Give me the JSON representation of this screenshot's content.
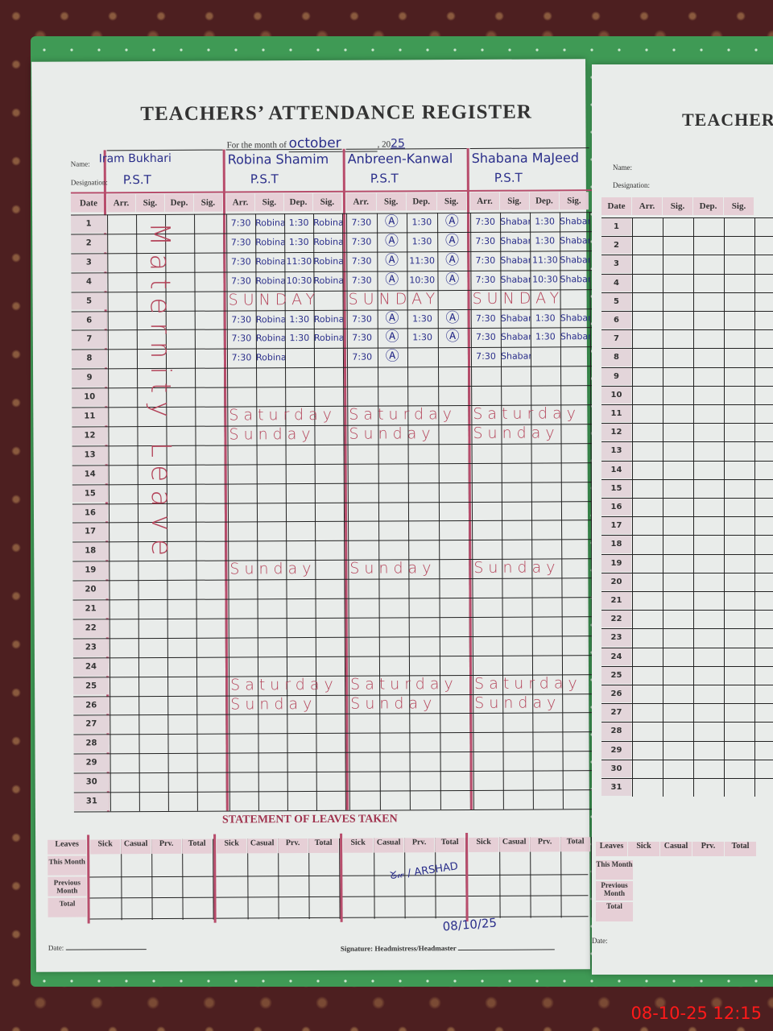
{
  "register": {
    "title": "TEACHERS’ ATTENDANCE REGISTER",
    "month_label": "For the month of",
    "month": "october",
    "year_prefix": "20",
    "year": "25",
    "name_label": "Name:",
    "designation_label": "Designation:",
    "col_headers": [
      "Date",
      "Arr.",
      "Sig.",
      "Dep.",
      "Sig."
    ],
    "teachers": [
      {
        "name": "Iram Bukhari",
        "designation": "P.S.T",
        "leave_note": "Maternity Leave"
      },
      {
        "name": "Robina Shamim",
        "designation": "P.S.T"
      },
      {
        "name": "Anbreen-Kanwal",
        "designation": "P.S.T"
      },
      {
        "name": "Shabana MaJeed",
        "designation": "P.S.T"
      }
    ],
    "rows": [
      {
        "date": "1",
        "cells": [
          [],
          [
            "7:30",
            "Robina",
            "1:30",
            "Robina"
          ],
          [
            "7:30",
            "Ⓐ",
            "1:30",
            "Ⓐ"
          ],
          [
            "7:30",
            "Shabana",
            "1:30",
            "Shabana"
          ]
        ]
      },
      {
        "date": "2",
        "cells": [
          [],
          [
            "7:30",
            "Robina",
            "1:30",
            "Robina"
          ],
          [
            "7:30",
            "Ⓐ",
            "1:30",
            "Ⓐ"
          ],
          [
            "7:30",
            "Shabana",
            "1:30",
            "Shabana"
          ]
        ]
      },
      {
        "date": "3",
        "cells": [
          [],
          [
            "7:30",
            "Robina",
            "11:30",
            "Robina"
          ],
          [
            "7:30",
            "Ⓐ",
            "11:30",
            "Ⓐ"
          ],
          [
            "7:30",
            "Shabana",
            "11:30",
            "Shabana"
          ]
        ]
      },
      {
        "date": "4",
        "cells": [
          [],
          [
            "7:30",
            "Robina",
            "10:30",
            "Robina"
          ],
          [
            "7:30",
            "Ⓐ",
            "10:30",
            "Ⓐ"
          ],
          [
            "7:30",
            "Shabana",
            "10:30",
            "Shabana"
          ]
        ]
      },
      {
        "date": "5",
        "note": "SUNDAY"
      },
      {
        "date": "6",
        "cells": [
          [],
          [
            "7:30",
            "Robina",
            "1:30",
            "Robina"
          ],
          [
            "7:30",
            "Ⓐ",
            "1:30",
            "Ⓐ"
          ],
          [
            "7:30",
            "Shabana",
            "1:30",
            "Shabana"
          ]
        ]
      },
      {
        "date": "7",
        "cells": [
          [],
          [
            "7:30",
            "Robina",
            "1:30",
            "Robina"
          ],
          [
            "7:30",
            "Ⓐ",
            "1:30",
            "Ⓐ"
          ],
          [
            "7:30",
            "Shabana",
            "1:30",
            "Shabana"
          ]
        ]
      },
      {
        "date": "8",
        "cells": [
          [],
          [
            "7:30",
            "Robina"
          ],
          [
            "7:30",
            "Ⓐ"
          ],
          [
            "7:30",
            "Shabana"
          ]
        ]
      },
      {
        "date": "9"
      },
      {
        "date": "10"
      },
      {
        "date": "11",
        "note": "Saturday"
      },
      {
        "date": "12",
        "note": "Sunday"
      },
      {
        "date": "13"
      },
      {
        "date": "14"
      },
      {
        "date": "15"
      },
      {
        "date": "16"
      },
      {
        "date": "17"
      },
      {
        "date": "18"
      },
      {
        "date": "19",
        "note": "Sunday"
      },
      {
        "date": "20"
      },
      {
        "date": "21"
      },
      {
        "date": "22"
      },
      {
        "date": "23"
      },
      {
        "date": "24"
      },
      {
        "date": "25",
        "note": "Saturday"
      },
      {
        "date": "26",
        "note": "Sunday"
      },
      {
        "date": "27"
      },
      {
        "date": "28"
      },
      {
        "date": "29"
      },
      {
        "date": "30"
      },
      {
        "date": "31"
      }
    ]
  },
  "leaves": {
    "title": "STATEMENT OF LEAVES TAKEN",
    "row_header": "Leaves",
    "col_headers": [
      "Sick",
      "Casual",
      "Prv.",
      "Total"
    ],
    "row_labels": [
      "This Month",
      "Previous Month",
      "Total"
    ],
    "signature_date": "08/10/25"
  },
  "footer": {
    "date_label": "Date:",
    "signature_label": "Signature: Headmistress/Headmaster"
  },
  "right_page": {
    "title": "TEACHER",
    "name_label": "Name:",
    "designation_label": "Designation:",
    "col_headers": [
      "Date",
      "Arr.",
      "Sig.",
      "Dep.",
      "Sig."
    ],
    "leaves_headers": [
      "Leaves",
      "Sick",
      "Casual",
      "Prv.",
      "Total"
    ],
    "row_labels": [
      "This Month",
      "Previous Month",
      "Total"
    ],
    "date_label": "Date:"
  },
  "camera_timestamp": "08-10-25  12:15",
  "colors": {
    "ink_blue": "#2a2e8a",
    "ink_red": "#b4445a",
    "rule_pink": "#b84d6c",
    "timestamp": "#ff1a1a"
  }
}
